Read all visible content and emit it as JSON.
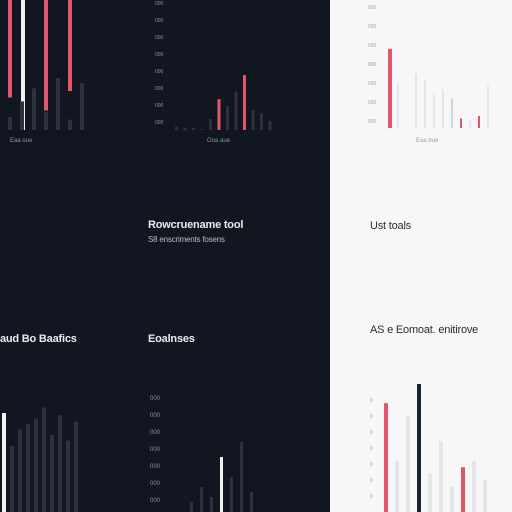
{
  "colors": {
    "dark_bg": "#121620",
    "light_bg": "#f7f7f8",
    "accent_red": "#e0566a",
    "accent_navy": "#1b2230",
    "bar_dark": "#2e323d",
    "bar_light": "#e3e5ea",
    "bar_blue_light": "#cfd6e6",
    "white_bar": "#f2f2f2"
  },
  "labels": {
    "panel1_title": "Rowcruename tool",
    "panel1_sub": "S8 enscriments fosens",
    "panel2_title": "Ust toals",
    "panel3_title": "aud Bo Baafics",
    "panel4_title": "Eoalnses",
    "panel5_title": "AS e Eomoat. enitirove",
    "axis_a": "Eaa oue",
    "axis_b": "Ooa aue",
    "axis_c": "Eaa bue"
  },
  "chart_data": [
    {
      "type": "bar",
      "panel": "top-left",
      "xlabel": "Eaa oue",
      "series": [
        {
          "color": "accent_red",
          "values": [
            0.75,
            0.0,
            0.0,
            0.85,
            0.0,
            0.7,
            0.0
          ]
        },
        {
          "color": "white_bar",
          "values": [
            0.0,
            1.0,
            0.0,
            0.0,
            0.0,
            0.0,
            0.0
          ]
        },
        {
          "color": "bar_dark",
          "values": [
            0.25,
            0.55,
            0.8,
            0.35,
            1.0,
            0.2,
            0.9
          ]
        }
      ]
    },
    {
      "type": "bar",
      "panel": "top-middle",
      "xlabel": "Ooa aue",
      "yticks": [
        "000",
        "000",
        "000",
        "000",
        "000",
        "000",
        "000",
        "000"
      ],
      "values": [
        0.03,
        0.02,
        0.02,
        0.01,
        0.1,
        0.28,
        0.22,
        0.35,
        0.5,
        0.18,
        0.15,
        0.08
      ],
      "highlight": [
        false,
        false,
        false,
        false,
        false,
        true,
        false,
        false,
        true,
        false,
        false,
        false
      ]
    },
    {
      "type": "bar",
      "panel": "top-right",
      "xlabel": "Eaa bue",
      "yticks": [
        "000",
        "000",
        "000",
        "000",
        "000",
        "000",
        "000"
      ],
      "values": [
        0.66,
        0.38,
        0.0,
        0.45,
        0.4,
        0.28,
        0.32,
        0.25,
        0.08,
        0.06,
        0.1,
        0.35
      ],
      "highlight": [
        true,
        false,
        false,
        false,
        false,
        false,
        false,
        false,
        true,
        false,
        true,
        false
      ]
    },
    {
      "type": "bar",
      "panel": "bottom-left",
      "values": [
        0.9,
        0.6,
        0.75,
        0.8,
        0.85,
        0.95,
        0.7,
        0.88,
        0.65,
        0.82
      ],
      "highlight": [
        true,
        false,
        false,
        false,
        false,
        false,
        false,
        false,
        false,
        false
      ]
    },
    {
      "type": "bar",
      "panel": "bottom-middle",
      "yticks": [
        "000",
        "000",
        "000",
        "000",
        "000",
        "000",
        "000"
      ],
      "values": [
        0.1,
        0.25,
        0.15,
        0.55,
        0.35,
        0.7,
        0.2
      ],
      "highlight": [
        false,
        false,
        false,
        true,
        false,
        false,
        false
      ]
    },
    {
      "type": "bar",
      "panel": "bottom-right",
      "yticks": [
        "0",
        "0",
        "0",
        "0",
        "0",
        "0",
        "0"
      ],
      "values": [
        0.85,
        0.4,
        0.75,
        1.0,
        0.3,
        0.55,
        0.2,
        0.35,
        0.4,
        0.25
      ],
      "highlight": [
        "red",
        "none",
        "none",
        "navy",
        "none",
        "none",
        "none",
        "red",
        "none",
        "none"
      ]
    }
  ]
}
